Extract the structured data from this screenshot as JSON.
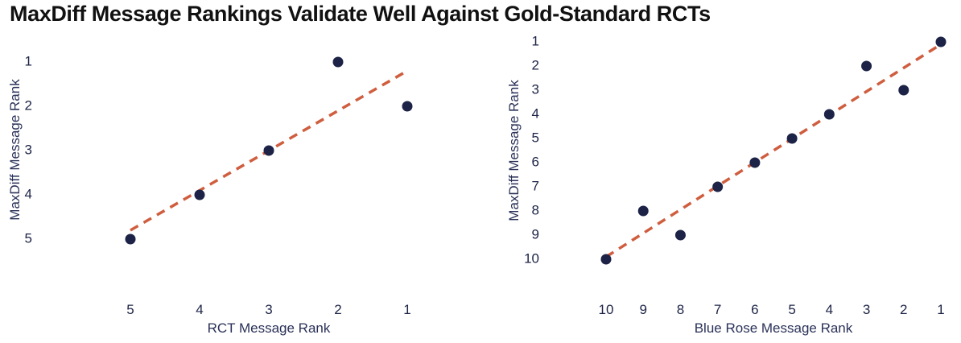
{
  "title": "MaxDiff Message Rankings Validate Well Against Gold-Standard RCTs",
  "colors": {
    "point": "#1c2346",
    "trendline": "#cf5e3f",
    "text": "#1c2346",
    "title": "#111111"
  },
  "chart_data": [
    {
      "type": "scatter",
      "title": "",
      "xlabel": "RCT Message Rank",
      "ylabel": "MaxDiff Message Rank",
      "x_reversed": true,
      "y_reversed": true,
      "xlim": [
        5,
        1
      ],
      "ylim": [
        5,
        1
      ],
      "xticks": [
        5,
        4,
        3,
        2,
        1
      ],
      "yticks": [
        1,
        2,
        3,
        4,
        5
      ],
      "grid": false,
      "points": [
        {
          "x": 5,
          "y": 5
        },
        {
          "x": 4,
          "y": 4
        },
        {
          "x": 3,
          "y": 3
        },
        {
          "x": 2,
          "y": 1
        },
        {
          "x": 1,
          "y": 2
        }
      ],
      "trendline": {
        "style": "dashed",
        "from": {
          "x": 5,
          "y": 4.8
        },
        "to": {
          "x": 1,
          "y": 1.2
        }
      }
    },
    {
      "type": "scatter",
      "title": "",
      "xlabel": "Blue Rose Message Rank",
      "ylabel": "MaxDiff Message Rank",
      "x_reversed": true,
      "y_reversed": true,
      "xlim": [
        10,
        1
      ],
      "ylim": [
        10,
        1
      ],
      "xticks": [
        10,
        9,
        8,
        7,
        6,
        5,
        4,
        3,
        2,
        1
      ],
      "yticks": [
        1,
        2,
        3,
        4,
        5,
        6,
        7,
        8,
        9,
        10
      ],
      "grid": false,
      "points": [
        {
          "x": 10,
          "y": 10
        },
        {
          "x": 9,
          "y": 8
        },
        {
          "x": 8,
          "y": 9
        },
        {
          "x": 7,
          "y": 7
        },
        {
          "x": 6,
          "y": 6
        },
        {
          "x": 5,
          "y": 5
        },
        {
          "x": 4,
          "y": 4
        },
        {
          "x": 3,
          "y": 2
        },
        {
          "x": 2,
          "y": 3
        },
        {
          "x": 1,
          "y": 1
        }
      ],
      "trendline": {
        "style": "dashed",
        "from": {
          "x": 10,
          "y": 9.9
        },
        "to": {
          "x": 1,
          "y": 1.1
        }
      }
    }
  ]
}
